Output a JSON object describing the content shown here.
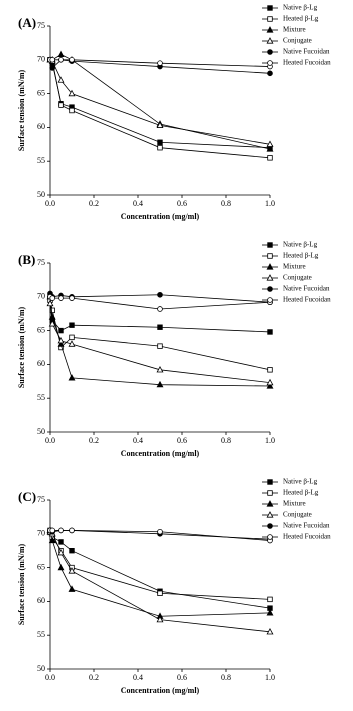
{
  "chart_data": [
    {
      "type": "line",
      "title": "(A)",
      "x_label": "Concentration (mg/ml)",
      "y_label": "Surface tension (mN/m)",
      "x": [
        0,
        0.01,
        0.05,
        0.1,
        0.5,
        1.0
      ],
      "xlim": [
        0,
        1.0
      ],
      "xticks": [
        {
          "value": 0,
          "label": "0.0"
        },
        0.2,
        0.4,
        0.6,
        0.8,
        {
          "value": 1,
          "label": "1.0"
        }
      ],
      "ylim": [
        50,
        75
      ],
      "yticks": [
        50,
        55,
        60,
        65,
        70,
        75
      ],
      "legend": "top-right",
      "series": [
        {
          "name": "Native β-Lg",
          "color": "#000000",
          "marker": "square",
          "filled": true,
          "values": [
            70,
            69.5,
            63.5,
            63,
            57.8,
            57
          ]
        },
        {
          "name": "Heated β-Lg",
          "color": "#000000",
          "marker": "square",
          "filled": false,
          "values": [
            70,
            69.8,
            63.3,
            62.5,
            57,
            55.5
          ]
        },
        {
          "name": "Mixture",
          "color": "#000000",
          "marker": "triangle",
          "filled": true,
          "values": [
            70,
            70,
            70.8,
            70,
            60.5,
            56.8
          ]
        },
        {
          "name": "Conjugate",
          "color": "#000000",
          "marker": "triangle",
          "filled": false,
          "values": [
            70,
            69.8,
            67,
            65,
            60.3,
            57.5
          ]
        },
        {
          "name": "Native Fucoidan",
          "color": "#000000",
          "marker": "circle",
          "filled": true,
          "values": [
            70,
            68.8,
            70,
            69.8,
            69,
            68
          ]
        },
        {
          "name": "Heated Fucoidan",
          "color": "#000000",
          "marker": "circle",
          "filled": false,
          "values": [
            70,
            70,
            70,
            70,
            69.5,
            69
          ]
        }
      ]
    },
    {
      "type": "line",
      "title": "(B)",
      "x_label": "Concentration (mg/ml)",
      "y_label": "Surface tension (mN/m)",
      "x": [
        0,
        0.01,
        0.05,
        0.1,
        0.5,
        1.0
      ],
      "xlim": [
        0,
        1.0
      ],
      "xticks": [
        {
          "value": 0,
          "label": "0.0"
        },
        0.2,
        0.4,
        0.6,
        0.8,
        {
          "value": 1,
          "label": "1.0"
        }
      ],
      "ylim": [
        50,
        75
      ],
      "yticks": [
        50,
        55,
        60,
        65,
        70,
        75
      ],
      "legend": "top-right",
      "series": [
        {
          "name": "Native β-Lg",
          "color": "#000000",
          "marker": "square",
          "filled": true,
          "values": [
            70,
            66.5,
            65,
            65.8,
            65.5,
            64.8
          ]
        },
        {
          "name": "Heated β-Lg",
          "color": "#000000",
          "marker": "square",
          "filled": false,
          "values": [
            69.5,
            68,
            62.5,
            64,
            62.7,
            59.2
          ]
        },
        {
          "name": "Mixture",
          "color": "#000000",
          "marker": "triangle",
          "filled": true,
          "values": [
            70,
            67,
            63,
            58,
            57,
            56.8
          ]
        },
        {
          "name": "Conjugate",
          "color": "#000000",
          "marker": "triangle",
          "filled": false,
          "values": [
            69,
            66,
            63.5,
            63,
            59.2,
            57.3
          ]
        },
        {
          "name": "Native Fucoidan",
          "color": "#000000",
          "marker": "circle",
          "filled": true,
          "values": [
            70.5,
            70,
            70.2,
            70,
            70.3,
            69.2
          ]
        },
        {
          "name": "Heated Fucoidan",
          "color": "#000000",
          "marker": "circle",
          "filled": false,
          "values": [
            70,
            69.8,
            69.8,
            69.8,
            68.2,
            69.2
          ]
        }
      ]
    },
    {
      "type": "line",
      "title": "(C)",
      "x_label": "Concentration (mg/ml)",
      "y_label": "Surface tension (mN/m)",
      "x": [
        0,
        0.01,
        0.05,
        0.1,
        0.5,
        1.0
      ],
      "xlim": [
        0,
        1.0
      ],
      "xticks": [
        {
          "value": 0,
          "label": "0.0"
        },
        0.2,
        0.4,
        0.6,
        0.8,
        {
          "value": 1,
          "label": "1.0"
        }
      ],
      "ylim": [
        50,
        75
      ],
      "yticks": [
        50,
        55,
        60,
        65,
        70,
        75
      ],
      "legend": "top-right",
      "series": [
        {
          "name": "Native β-Lg",
          "color": "#000000",
          "marker": "square",
          "filled": true,
          "values": [
            70.5,
            69.5,
            68.8,
            67.5,
            61.5,
            59
          ]
        },
        {
          "name": "Heated β-Lg",
          "color": "#000000",
          "marker": "square",
          "filled": false,
          "values": [
            70.2,
            69.5,
            67.5,
            65,
            61.2,
            60.3
          ]
        },
        {
          "name": "Mixture",
          "color": "#000000",
          "marker": "triangle",
          "filled": true,
          "values": [
            70.5,
            69,
            65,
            61.8,
            57.8,
            58.3
          ]
        },
        {
          "name": "Conjugate",
          "color": "#000000",
          "marker": "triangle",
          "filled": false,
          "values": [
            70.3,
            70,
            67.2,
            64.5,
            57.3,
            55.5
          ]
        },
        {
          "name": "Native Fucoidan",
          "color": "#000000",
          "marker": "circle",
          "filled": true,
          "values": [
            70.5,
            70.3,
            70.5,
            70.5,
            70,
            69.2
          ]
        },
        {
          "name": "Heated Fucoidan",
          "color": "#000000",
          "marker": "circle",
          "filled": false,
          "values": [
            70.5,
            70.5,
            70.5,
            70.5,
            70.3,
            69
          ]
        }
      ]
    }
  ]
}
